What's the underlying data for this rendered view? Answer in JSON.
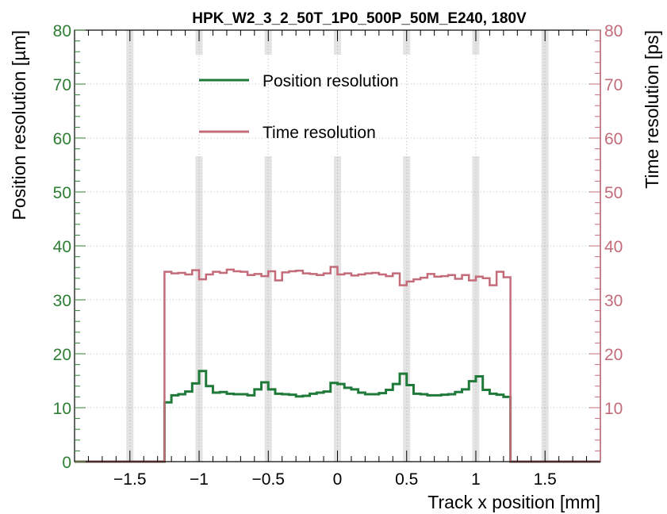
{
  "chart_data": {
    "type": "line",
    "title": "HPK_W2_3_2_50T_1P0_500P_50M_E240, 180V",
    "xlabel": "Track x position [mm]",
    "ylabel_left": "Position resolution [µm]",
    "ylabel_right": "Time resolution [ps]",
    "xlim": [
      -1.9,
      1.9
    ],
    "ylim_left": [
      0,
      80
    ],
    "ylim_right": [
      0,
      80
    ],
    "x_ticks": [
      -1.5,
      -1,
      -0.5,
      0,
      0.5,
      1,
      1.5
    ],
    "x_tick_labels": [
      "−1.5",
      "−1",
      "−0.5",
      "0",
      "0.5",
      "1",
      "1.5"
    ],
    "y_ticks_left": [
      0,
      10,
      20,
      30,
      40,
      50,
      60,
      70,
      80
    ],
    "y_tick_labels_left": [
      "0",
      "10",
      "20",
      "30",
      "40",
      "50",
      "60",
      "70",
      "80"
    ],
    "y_ticks_right": [
      10,
      20,
      30,
      40,
      50,
      60,
      70,
      80
    ],
    "y_tick_labels_right": [
      "10",
      "20",
      "30",
      "40",
      "50",
      "60",
      "70",
      "80"
    ],
    "grid": true,
    "legend": "top-center",
    "colors": {
      "position": "#1f7a3a",
      "time": "#c46b7a",
      "left_axis": "#2e7d32",
      "right_axis": "#c46b7a",
      "strip_bands": "#e3e3e3",
      "grid": "#b8b8b8"
    },
    "strip_bands": [
      -1.5,
      -1.0,
      -0.5,
      0.0,
      0.5,
      1.0,
      1.5
    ],
    "bin_width": 0.05,
    "x_edges": [
      -1.9,
      -1.85,
      -1.8,
      -1.75,
      -1.7,
      -1.65,
      -1.6,
      -1.55,
      -1.5,
      -1.45,
      -1.4,
      -1.35,
      -1.3,
      -1.25,
      -1.2,
      -1.15,
      -1.1,
      -1.05,
      -1.0,
      -0.95,
      -0.9,
      -0.85,
      -0.8,
      -0.75,
      -0.7,
      -0.65,
      -0.6,
      -0.55,
      -0.5,
      -0.45,
      -0.4,
      -0.35,
      -0.3,
      -0.25,
      -0.2,
      -0.15,
      -0.1,
      -0.05,
      0.0,
      0.05,
      0.1,
      0.15,
      0.2,
      0.25,
      0.3,
      0.35,
      0.4,
      0.45,
      0.5,
      0.55,
      0.6,
      0.65,
      0.7,
      0.75,
      0.8,
      0.85,
      0.9,
      0.95,
      1.0,
      1.05,
      1.1,
      1.15,
      1.2,
      1.25,
      1.3,
      1.35,
      1.4,
      1.45,
      1.5,
      1.55,
      1.6,
      1.65,
      1.7,
      1.75,
      1.8,
      1.85,
      1.9
    ],
    "series": [
      {
        "name": "Position resolution",
        "axis": "left",
        "values": [
          0,
          0,
          0,
          0,
          0,
          0,
          0,
          0,
          0,
          0,
          0,
          0,
          0,
          11.0,
          12.3,
          12.5,
          13.0,
          14.5,
          16.8,
          14.0,
          12.8,
          12.9,
          12.6,
          12.5,
          12.5,
          12.3,
          13.4,
          14.7,
          13.4,
          12.6,
          12.5,
          12.4,
          12.1,
          12.2,
          12.6,
          12.8,
          13.0,
          14.6,
          14.4,
          13.7,
          13.4,
          12.8,
          12.5,
          12.5,
          12.7,
          13.3,
          14.4,
          16.3,
          14.2,
          12.6,
          12.5,
          12.3,
          12.3,
          12.4,
          12.5,
          12.9,
          13.4,
          14.9,
          15.8,
          13.3,
          12.6,
          12.4,
          12.0,
          0,
          0,
          0,
          0,
          0,
          0,
          0,
          0,
          0,
          0,
          0,
          0,
          0
        ]
      },
      {
        "name": "Time resolution",
        "axis": "right",
        "values": [
          0,
          0,
          0,
          0,
          0,
          0,
          0,
          0,
          0,
          0,
          0,
          0,
          0,
          35.2,
          34.9,
          35.0,
          34.7,
          35.5,
          33.8,
          34.7,
          35.2,
          35.0,
          35.6,
          35.3,
          35.2,
          34.6,
          34.8,
          34.4,
          35.3,
          33.6,
          35.1,
          35.3,
          35.4,
          34.9,
          34.8,
          34.6,
          34.9,
          36.1,
          34.7,
          34.9,
          34.5,
          34.7,
          34.9,
          35.0,
          34.7,
          34.4,
          34.9,
          32.7,
          33.4,
          33.8,
          34.1,
          34.8,
          34.3,
          34.4,
          34.6,
          33.9,
          34.6,
          33.6,
          34.3,
          34.0,
          32.7,
          35.2,
          34.2,
          0,
          0,
          0,
          0,
          0,
          0,
          0,
          0,
          0,
          0,
          0,
          0,
          0
        ]
      }
    ]
  }
}
